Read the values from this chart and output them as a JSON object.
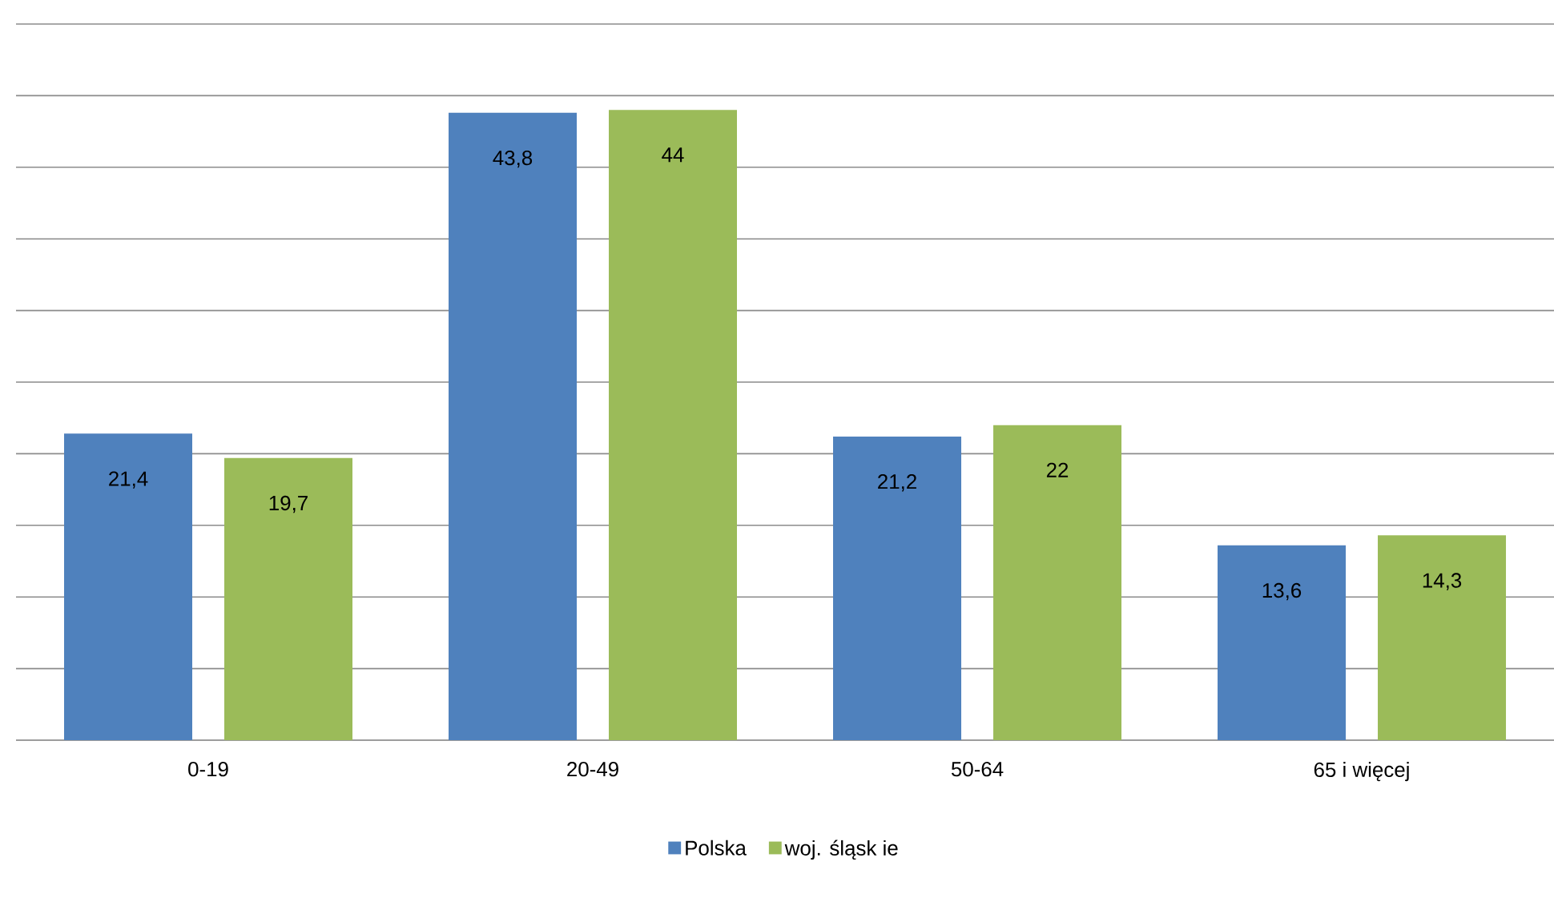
{
  "chart_data": {
    "type": "bar",
    "categories": [
      "0-19",
      "20-49",
      "50-64",
      "65 i więcej"
    ],
    "series": [
      {
        "name": "Polska",
        "color": "#4f81bd",
        "values": [
          21.4,
          43.8,
          21.2,
          13.6
        ],
        "value_labels": [
          "21,4",
          "43,8",
          "21,2",
          "13,6"
        ]
      },
      {
        "name": "woj. śląsk ie",
        "color": "#9bbb59",
        "values": [
          19.7,
          44,
          22,
          14.3
        ],
        "value_labels": [
          "19,7",
          "44",
          "22",
          "14,3"
        ]
      }
    ],
    "ylim": [
      0,
      50
    ],
    "yticks": [
      {
        "value": 0,
        "label": null
      },
      {
        "value": 5,
        "label": null
      },
      {
        "value": 10,
        "label": null
      },
      {
        "value": 15,
        "label": null
      },
      {
        "value": 20,
        "label": null
      },
      {
        "value": 25,
        "label": null
      },
      {
        "value": 30,
        "label": null
      },
      {
        "value": 35,
        "label": null
      },
      {
        "value": 40,
        "label": null
      },
      {
        "value": 45,
        "label": null
      },
      {
        "value": 50,
        "label": null
      }
    ],
    "grid": "y",
    "legend": "bottom",
    "tick_labels": "x"
  }
}
